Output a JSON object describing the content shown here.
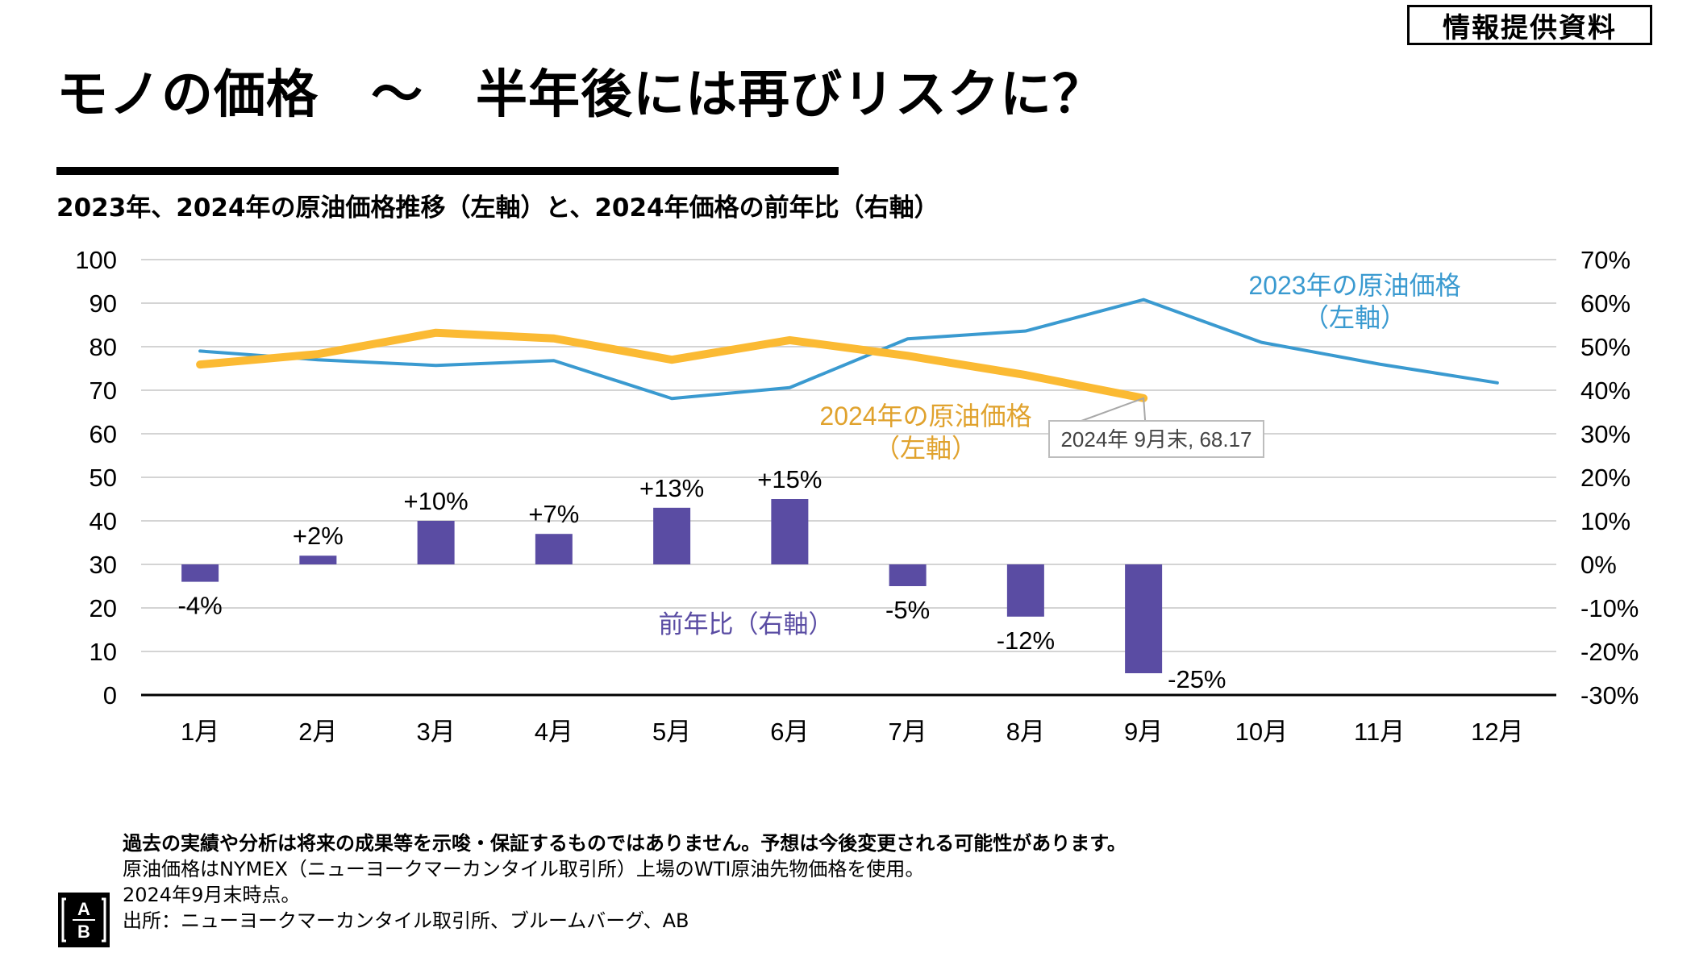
{
  "badge": "情報提供資料",
  "title": "モノの価格　～　半年後には再びリスクに？",
  "subtitle": "2023年、2024年の原油価格推移（左軸）と、2024年価格の前年比（右軸）",
  "colors": {
    "series_2023": "#3A9AD0",
    "series_2024": "#FBBA33",
    "bars": "#5A4CA3",
    "label_2024": "#E0A22D",
    "grid": "#D4D4D4",
    "axis": "#000000"
  },
  "chart_data": {
    "type": "bar+line",
    "title": "2023年、2024年の原油価格推移（左軸）と、2024年価格の前年比（右軸）",
    "categories": [
      "1月",
      "2月",
      "3月",
      "4月",
      "5月",
      "6月",
      "7月",
      "8月",
      "9月",
      "10月",
      "11月",
      "12月"
    ],
    "left_axis": {
      "ylim": [
        0,
        100
      ],
      "ticks": [
        0,
        10,
        20,
        30,
        40,
        50,
        60,
        70,
        80,
        90,
        100
      ],
      "tick_labels": [
        "0",
        "10",
        "20",
        "30",
        "40",
        "50",
        "60",
        "70",
        "80",
        "90",
        "100"
      ]
    },
    "right_axis": {
      "ylim": [
        -30,
        70
      ],
      "ticks": [
        -30,
        -20,
        -10,
        0,
        10,
        20,
        30,
        40,
        50,
        60,
        70
      ],
      "tick_labels": [
        "-30%",
        "-20%",
        "-10%",
        "0%",
        "10%",
        "20%",
        "30%",
        "40%",
        "50%",
        "60%",
        "70%"
      ]
    },
    "grid": true,
    "series": [
      {
        "name": "2023年の原油価格（左軸）",
        "kind": "line",
        "axis": "left",
        "values": [
          79.0,
          77.0,
          75.7,
          76.8,
          68.1,
          70.6,
          81.8,
          83.6,
          90.8,
          81.0,
          76.0,
          71.7
        ]
      },
      {
        "name": "2024年の原油価格（左軸）",
        "kind": "line",
        "axis": "left",
        "values": [
          75.9,
          78.3,
          83.2,
          81.9,
          77.0,
          81.5,
          77.9,
          73.5,
          68.17,
          null,
          null,
          null
        ]
      },
      {
        "name": "前年比（右軸）",
        "kind": "bar",
        "axis": "right",
        "values": [
          -4,
          2,
          10,
          7,
          13,
          15,
          -5,
          -12,
          -25,
          null,
          null,
          null
        ],
        "data_labels": [
          "-4%",
          "+2%",
          "+10%",
          "+7%",
          "+13%",
          "+15%",
          "-5%",
          "-12%",
          "-25%"
        ]
      }
    ],
    "annotations": {
      "label_2023": [
        "2023年の原油価格",
        "（左軸）"
      ],
      "label_2024": [
        "2024年の原油価格",
        "（左軸）"
      ],
      "label_yoy": "前年比（右軸）",
      "callout": "2024年 9月末, 68.17"
    }
  },
  "notes": {
    "line1": "過去の実績や分析は将来の成果等を示唆・保証するものではありません。予想は今後変更される可能性があります。",
    "line2": "原油価格はNYMEX（ニューヨークマーカンタイル取引所）上場のWTI原油先物価格を使用。",
    "line3": "2024年9月末時点。",
    "line4": "出所：ニューヨークマーカンタイル取引所、ブルームバーグ、AB"
  },
  "logo": {
    "top": "A",
    "bottom": "B"
  }
}
